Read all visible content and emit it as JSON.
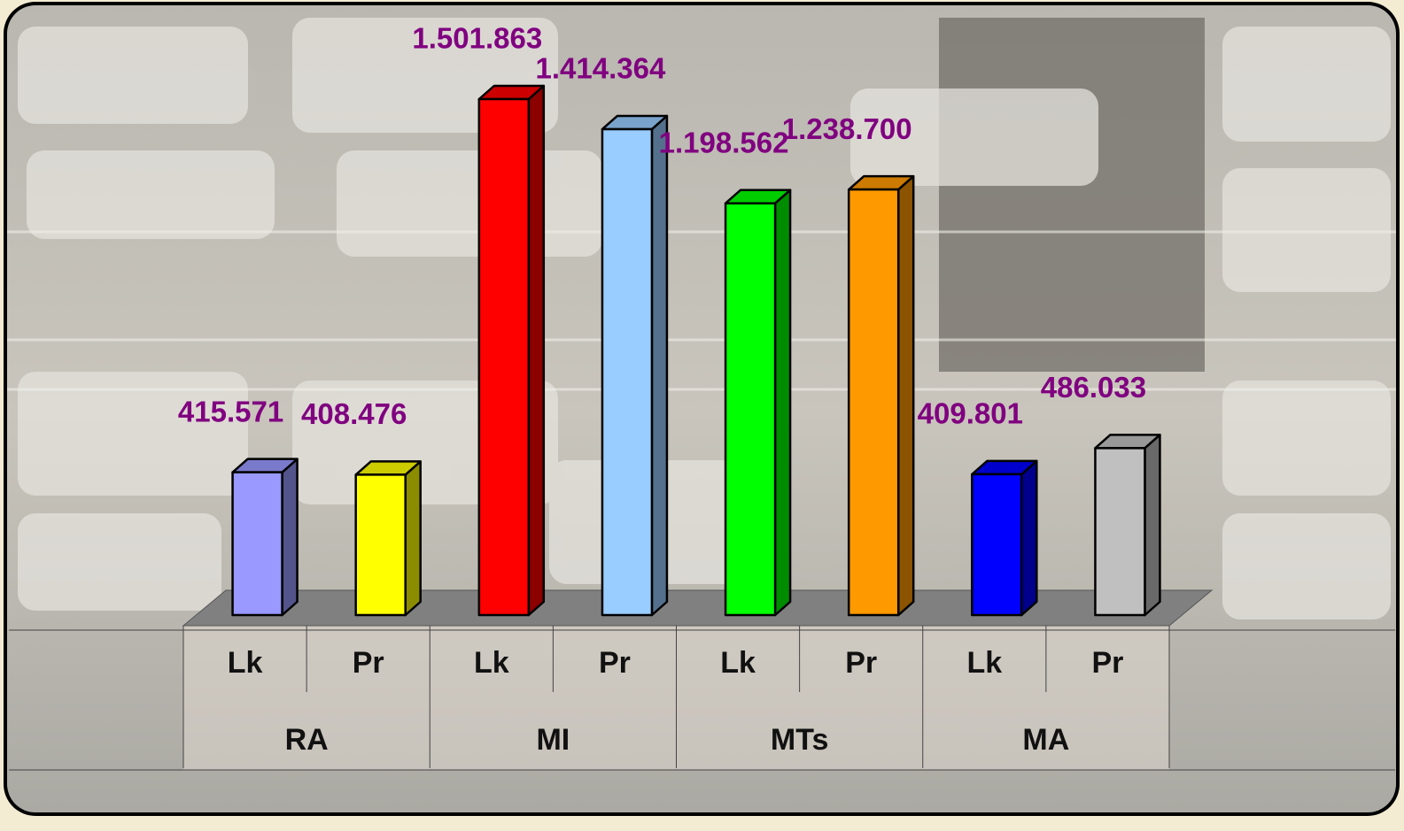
{
  "chart_data": {
    "type": "bar",
    "categories": [
      "Lk",
      "Pr",
      "Lk",
      "Pr",
      "Lk",
      "Pr",
      "Lk",
      "Pr"
    ],
    "groups": [
      "RA",
      "MI",
      "MTs",
      "MA"
    ],
    "values": [
      415571,
      408476,
      1501863,
      1414364,
      1198562,
      1238700,
      409801,
      486033
    ],
    "value_labels": [
      "415.571",
      "408.476",
      "1.501.863",
      "1.414.364",
      "1.198.562",
      "1.238.700",
      "409.801",
      "486.033"
    ],
    "colors": [
      "#9999ff",
      "#ffff00",
      "#ff0000",
      "#99ccff",
      "#00ff00",
      "#ff9900",
      "#0000ff",
      "#c0c0c0"
    ]
  }
}
